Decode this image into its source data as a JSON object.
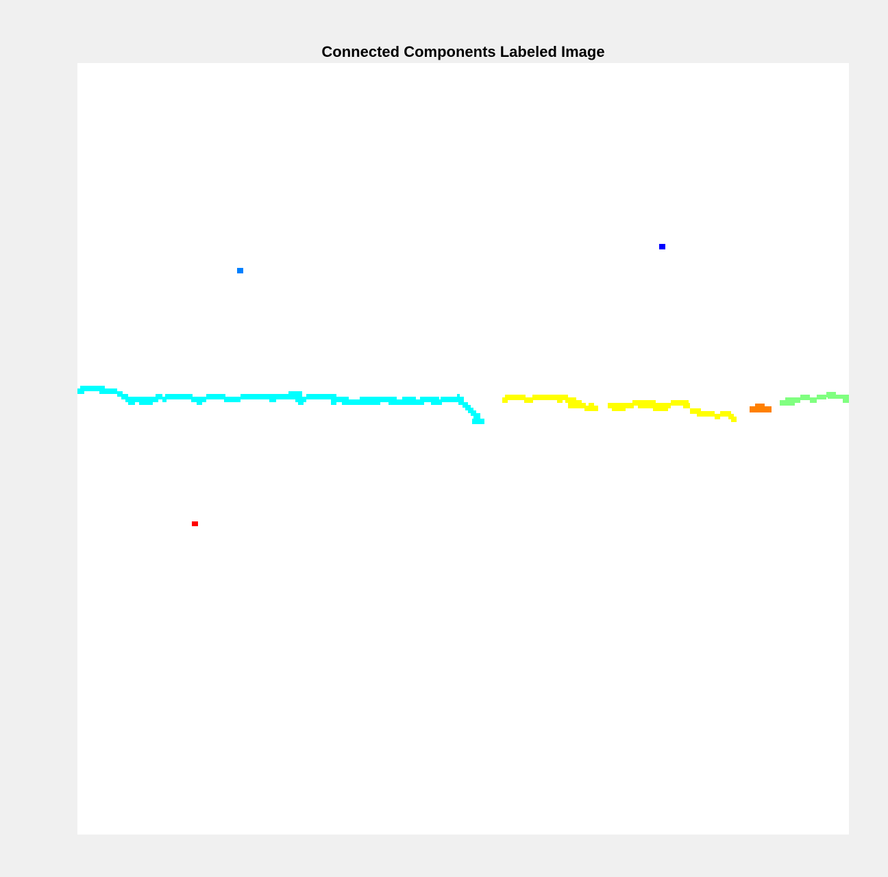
{
  "figure": {
    "title": "Connected Components Labeled Image",
    "background_color": "#f0f0f0",
    "image_background_color": "#ffffff"
  },
  "components": [
    {
      "id": "blue-dot",
      "color": "#0000ff"
    },
    {
      "id": "light-blue-dot",
      "color": "#0080ff"
    },
    {
      "id": "cyan-line",
      "color": "#00ffff"
    },
    {
      "id": "green-line",
      "color": "#80ff80"
    },
    {
      "id": "yellow-line",
      "color": "#ffff00"
    },
    {
      "id": "orange-blob",
      "color": "#ff8000"
    },
    {
      "id": "red-dot",
      "color": "#ff0000"
    }
  ]
}
